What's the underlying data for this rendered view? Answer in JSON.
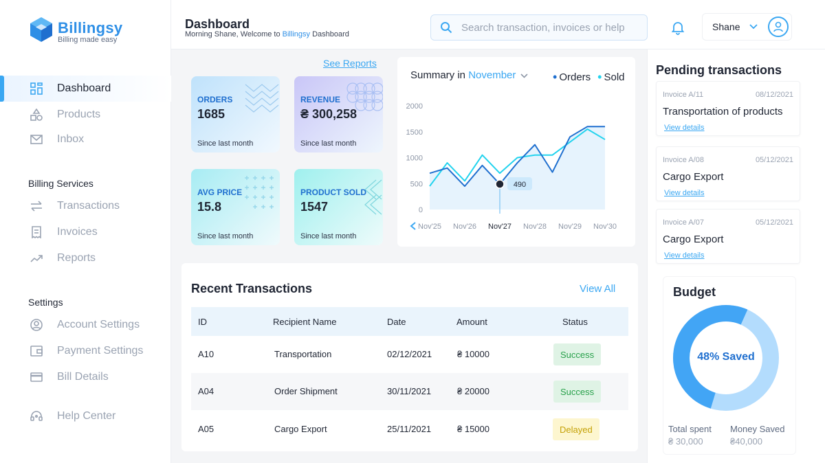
{
  "brand": {
    "name": "Billingsy",
    "tagline": "Billing made easy",
    "logo_icon": "cube-icon",
    "color": "#2e8fe6"
  },
  "sidebar": {
    "main": [
      {
        "label": "Dashboard",
        "icon": "grid-icon",
        "active": true
      },
      {
        "label": "Products",
        "icon": "shapes-icon"
      },
      {
        "label": "Inbox",
        "icon": "mail-icon"
      }
    ],
    "billing_title": "Billing Services",
    "billing": [
      {
        "label": "Transactions",
        "icon": "arrows-swap-icon"
      },
      {
        "label": "Invoices",
        "icon": "receipt-icon"
      },
      {
        "label": "Reports",
        "icon": "trend-icon"
      }
    ],
    "settings_title": "Settings",
    "settings": [
      {
        "label": "Account Settings",
        "icon": "user-circle-icon"
      },
      {
        "label": "Payment Settings",
        "icon": "wallet-icon"
      },
      {
        "label": "Bill Details",
        "icon": "card-icon"
      }
    ],
    "help": {
      "label": "Help Center",
      "icon": "headset-icon"
    }
  },
  "header": {
    "title": "Dashboard",
    "welcome_prefix": "Morning Shane, Welcome to ",
    "welcome_brand": "Billingsy",
    "welcome_suffix": " Dashboard",
    "search_placeholder": "Search transaction, invoices or help",
    "user_name": "Shane"
  },
  "stats": {
    "see_reports": "See Reports",
    "cards": [
      {
        "label": "ORDERS",
        "value": "1685",
        "sub": "Since last month"
      },
      {
        "label": "REVENUE",
        "value": "₴ 300,258",
        "sub": "Since last month"
      },
      {
        "label": "AVG PRICE",
        "value": "15.8",
        "sub": "Since last month"
      },
      {
        "label": "PRODUCT SOLD",
        "value": "1547",
        "sub": "Since last month"
      }
    ]
  },
  "summary": {
    "title_prefix": "Summary in ",
    "month": "November",
    "legend": [
      {
        "name": "Orders",
        "color": "#1565c0"
      },
      {
        "name": "Sold",
        "color": "#22d3ee"
      }
    ],
    "tooltip": "490"
  },
  "chart_data": {
    "type": "line",
    "x_ticks": [
      "Nov'25",
      "Nov'26",
      "Nov'27",
      "Nov'28",
      "Nov'29",
      "Nov'30"
    ],
    "selected_tick": "Nov'27",
    "y_ticks": [
      "2000",
      "1500",
      "1000",
      "500",
      "0"
    ],
    "ylim": [
      0,
      2000
    ],
    "x": [
      25,
      25.5,
      26,
      26.5,
      27,
      27.5,
      28,
      28.5,
      29,
      29.5,
      30
    ],
    "series": [
      {
        "name": "Orders",
        "color": "#1f6fcf",
        "values": [
          700,
          800,
          450,
          850,
          490,
          900,
          1250,
          720,
          1400,
          1600,
          1600
        ]
      },
      {
        "name": "Sold",
        "color": "#22d3ee",
        "values": [
          450,
          900,
          550,
          1050,
          700,
          1000,
          1050,
          1050,
          1300,
          1550,
          1350
        ]
      }
    ],
    "highlight": {
      "x": 27,
      "value": 490
    },
    "grid": false,
    "legend": "top-right"
  },
  "recent": {
    "title": "Recent Transactions",
    "view_all": "View All",
    "columns": [
      "ID",
      "Recipient Name",
      "Date",
      "Amount",
      "Status"
    ],
    "rows": [
      {
        "id": "A10",
        "recipient": "Transportation",
        "date": "02/12/2021",
        "amount": "₴ 10000",
        "status": "Success",
        "type": "success"
      },
      {
        "id": "A04",
        "recipient": "Order Shipment",
        "date": "30/11/2021",
        "amount": "₴ 20000",
        "status": "Success",
        "type": "success"
      },
      {
        "id": "A05",
        "recipient": "Cargo Export",
        "date": "25/11/2021",
        "amount": "₴ 15000",
        "status": "Delayed",
        "type": "delayed"
      }
    ]
  },
  "pending": {
    "title": "Pending transactions",
    "items": [
      {
        "invoice": "Invoice A/11",
        "date": "08/12/2021",
        "title": "Transportation of products",
        "link": "View details"
      },
      {
        "invoice": "Invoice A/08",
        "date": "05/12/2021",
        "title": "Cargo Export",
        "link": "View details"
      },
      {
        "invoice": "Invoice A/07",
        "date": "05/12/2021",
        "title": "Cargo Export",
        "link": "View details"
      }
    ]
  },
  "budget": {
    "title": "Budget",
    "saved_percent": 48,
    "saved_label": "48% Saved",
    "total_spent_label": "Total spent",
    "total_spent_value": "₴ 30,000",
    "money_saved_label": "Money Saved",
    "money_saved_value": "₴40,000",
    "colors": {
      "spent": "#42a5f5",
      "saved": "#b3dcfd"
    }
  }
}
